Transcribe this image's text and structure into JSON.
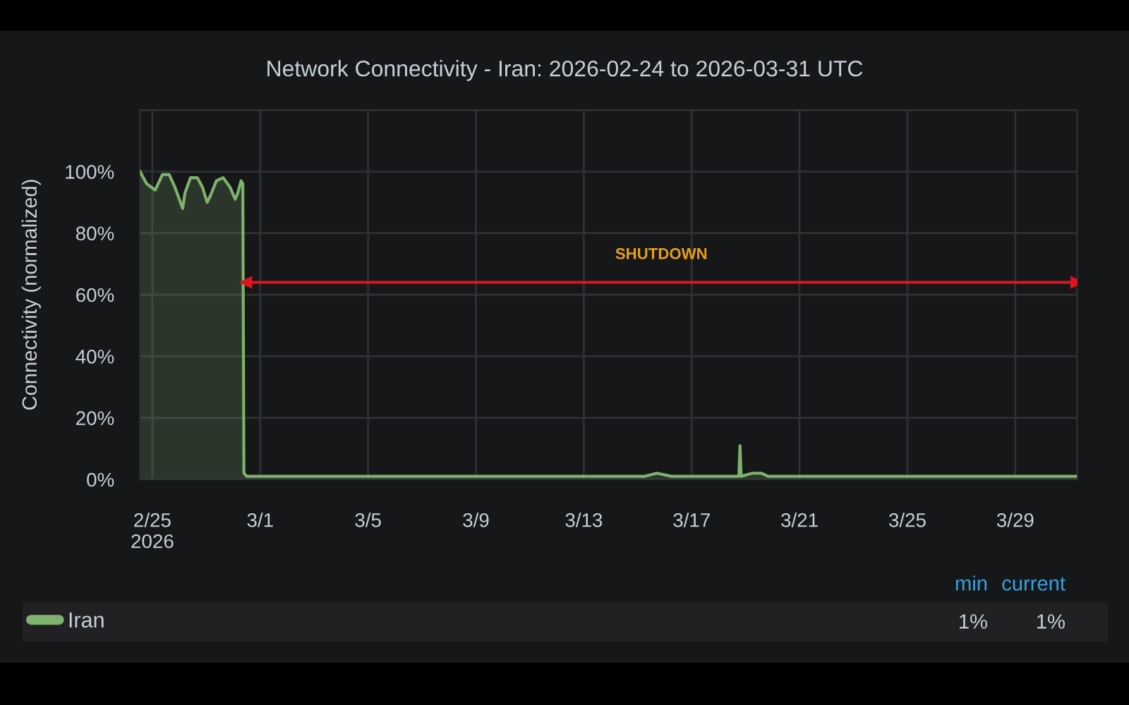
{
  "chart_data": {
    "type": "area",
    "title": "Network Connectivity - Iran: 2026-02-24 to 2026-03-31 UTC",
    "ylabel": "Connectivity (normalized)",
    "x": [
      "2026-02-24T13:00",
      "2026-02-24T19:00",
      "2026-02-25T02:30",
      "2026-02-25T09:00",
      "2026-02-25T15:00",
      "2026-02-25T20:00",
      "2026-02-26T00:00",
      "2026-02-26T03:00",
      "2026-02-26T05:00",
      "2026-02-26T10:00",
      "2026-02-26T16:00",
      "2026-02-26T20:30",
      "2026-02-27T00:45",
      "2026-02-27T03:30",
      "2026-02-27T09:00",
      "2026-02-27T15:00",
      "2026-02-27T21:00",
      "2026-02-28T01:45",
      "2026-02-28T04:00",
      "2026-02-28T07:00",
      "2026-02-28T08:30",
      "2026-02-28T09:30",
      "2026-02-28T12:00",
      "2026-03-01T00:00",
      "2026-03-04T00:00",
      "2026-03-08T00:00",
      "2026-03-12T00:00",
      "2026-03-15T06:00",
      "2026-03-15T17:00",
      "2026-03-16T06:00",
      "2026-03-18T18:00",
      "2026-03-18T19:00",
      "2026-03-18T20:00",
      "2026-03-19T06:00",
      "2026-03-19T14:00",
      "2026-03-19T20:00",
      "2026-03-22T00:00",
      "2026-03-25T00:00",
      "2026-03-28T00:00",
      "2026-03-31T07:00"
    ],
    "series": [
      {
        "name": "Iran",
        "color": "#7eb26d",
        "values": [
          100,
          96,
          94,
          99,
          99,
          95,
          91,
          88,
          93,
          98,
          98,
          95,
          90,
          92,
          97,
          98,
          95,
          91,
          93,
          97,
          96,
          2,
          1,
          1,
          1,
          1,
          1,
          1,
          2,
          1,
          1,
          11,
          1,
          2,
          2,
          1,
          1,
          1,
          1,
          1
        ]
      },
      {
        "type": "line",
        "color": "#e0141e",
        "marker": "triangle",
        "x": [
          "2026-02-28T11:00",
          "2026-03-31T07:00"
        ],
        "values": [
          64,
          64
        ]
      }
    ],
    "xlim": [
      "2026-02-24T13:00",
      "2026-03-31T07:00"
    ],
    "xticks": [
      {
        "value": "2026-02-25",
        "label": "2/25\n2026"
      },
      {
        "value": "2026-03-01",
        "label": "3/1"
      },
      {
        "value": "2026-03-05",
        "label": "3/5"
      },
      {
        "value": "2026-03-09",
        "label": "3/9"
      },
      {
        "value": "2026-03-13",
        "label": "3/13"
      },
      {
        "value": "2026-03-17",
        "label": "3/17"
      },
      {
        "value": "2026-03-21",
        "label": "3/21"
      },
      {
        "value": "2026-03-25",
        "label": "3/25"
      },
      {
        "value": "2026-03-29",
        "label": "3/29"
      }
    ],
    "ylim": [
      0,
      120
    ],
    "yticks": [
      {
        "value": 0,
        "label": "0%"
      },
      {
        "value": 20,
        "label": "20%"
      },
      {
        "value": 40,
        "label": "40%"
      },
      {
        "value": 60,
        "label": "60%"
      },
      {
        "value": 80,
        "label": "80%"
      },
      {
        "value": 100,
        "label": "100%"
      },
      {
        "value": 120,
        "label": null
      }
    ],
    "grid": true,
    "legend": "bottom",
    "annotations": [
      {
        "text": "SHUTDOWN",
        "x": "2026-03-15T21:00",
        "y": 64
      },
      "min",
      "current",
      "1%",
      "1%"
    ]
  }
}
